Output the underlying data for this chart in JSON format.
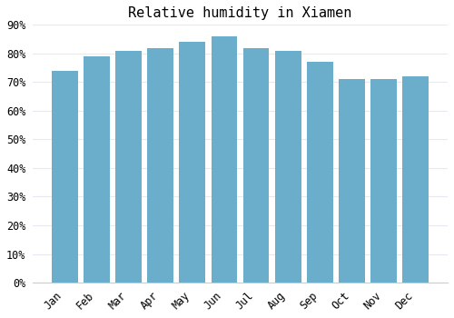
{
  "title": "Relative humidity in Xiamen",
  "months": [
    "Jan",
    "Feb",
    "Mar",
    "Apr",
    "May",
    "Jun",
    "Jul",
    "Aug",
    "Sep",
    "Oct",
    "Nov",
    "Dec"
  ],
  "values": [
    74,
    79,
    81,
    82,
    84,
    86,
    82,
    81,
    77,
    71,
    71,
    72
  ],
  "bar_color": "#6aaecb",
  "background_color": "#ffffff",
  "grid_color": "#e8e8f0",
  "ylim": [
    0,
    90
  ],
  "yticks": [
    0,
    10,
    20,
    30,
    40,
    50,
    60,
    70,
    80,
    90
  ],
  "title_fontsize": 11,
  "tick_fontsize": 8.5
}
